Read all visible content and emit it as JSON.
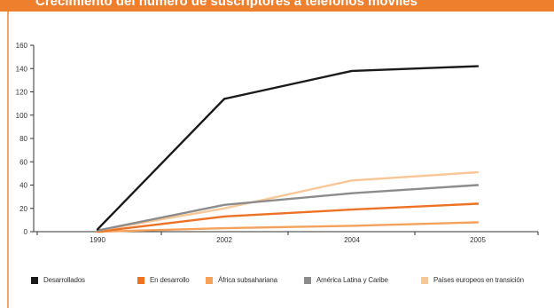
{
  "header": {
    "title": "Crecimiento del número de suscriptores a teléfonos móviles"
  },
  "chart_data": {
    "type": "line",
    "title": "Crecimiento del número de suscriptores a teléfonos móviles",
    "xlabel": "",
    "ylabel": "",
    "categories": [
      "1990",
      "2002",
      "2004",
      "2005"
    ],
    "ylim": [
      0,
      160
    ],
    "yticks": [
      0,
      20,
      40,
      60,
      80,
      100,
      120,
      140,
      160
    ],
    "grid": false,
    "legend_position": "bottom",
    "series": [
      {
        "name": "Desarrollados",
        "color": "#1a1a1a",
        "values": [
          2,
          114,
          138,
          142
        ]
      },
      {
        "name": "En desarrollo",
        "color": "#ee7124",
        "values": [
          0,
          13,
          19,
          24
        ]
      },
      {
        "name": "África subsahariana",
        "color": "#f5a15c",
        "values": [
          0,
          3,
          5,
          8
        ]
      },
      {
        "name": "América Latina y Caribe",
        "color": "#8c8c8c",
        "values": [
          1,
          23,
          33,
          40
        ]
      },
      {
        "name": "Países europeos en transición",
        "color": "#f9c696",
        "values": [
          1,
          20,
          44,
          51
        ]
      }
    ]
  }
}
